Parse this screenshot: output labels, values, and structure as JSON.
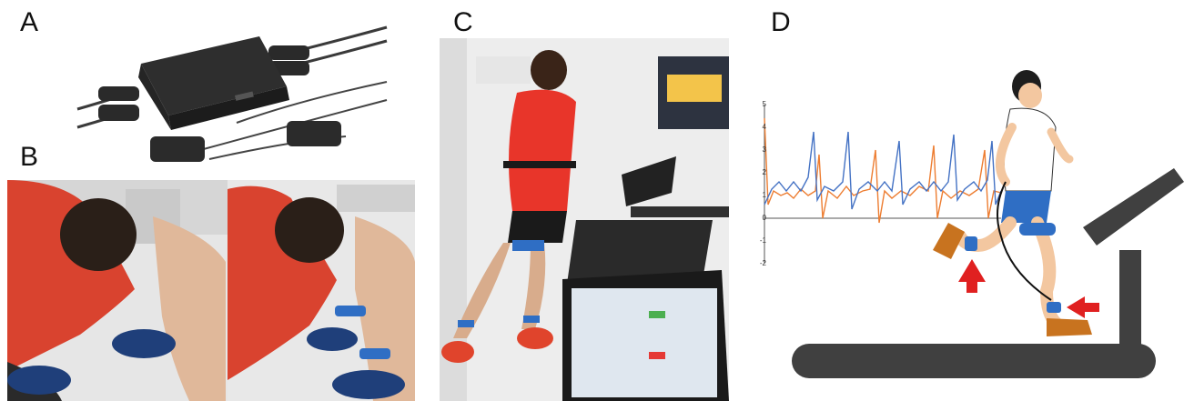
{
  "panels": {
    "a": {
      "letter": "A"
    },
    "b": {
      "letter": "B"
    },
    "c": {
      "letter": "C"
    },
    "d": {
      "letter": "D"
    }
  },
  "panel_d_plot": {
    "y_ticks": [
      "5",
      "4",
      "3",
      "2",
      "1",
      "0",
      "-1",
      "-2"
    ],
    "series_colors": {
      "blue": "#4472c4",
      "orange": "#ed7d31"
    },
    "arrow_color": "#e02020",
    "treadmill_color": "#404040"
  },
  "colors": {
    "device": "#2b2b2b",
    "shirt": "#e8352a",
    "hoodie": "#d9432f",
    "strap": "#2f6ec4",
    "shoe_blue": "#1f3f7a",
    "shoe_orange": "#c8731f"
  }
}
